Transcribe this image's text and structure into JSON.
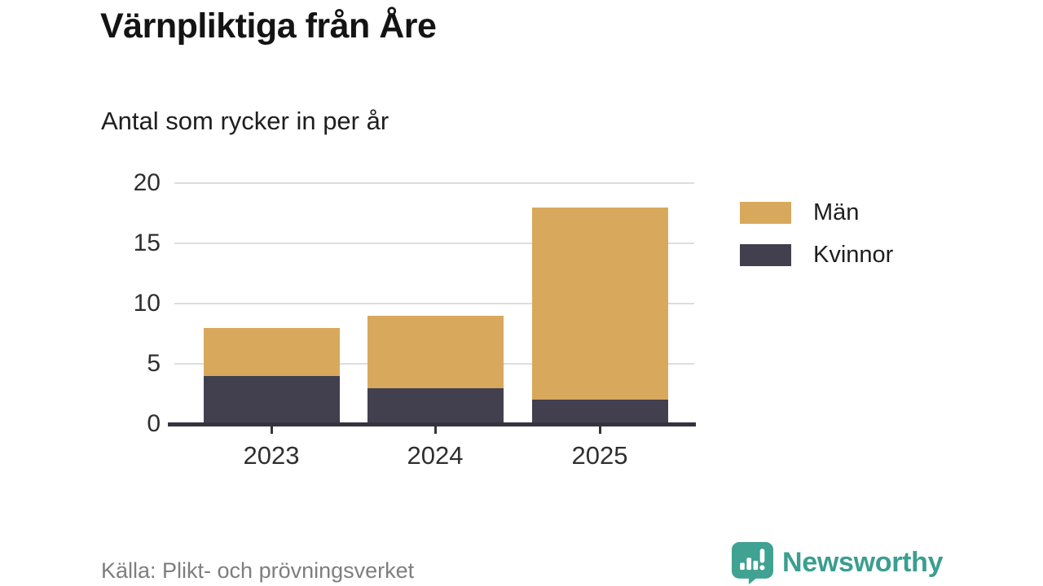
{
  "header": {
    "title": "Värnpliktiga från Åre",
    "subtitle": "Antal som rycker in per år"
  },
  "chart_data": {
    "type": "bar",
    "stacked": true,
    "categories": [
      "2023",
      "2024",
      "2025"
    ],
    "series": [
      {
        "name": "Män",
        "color": "#d8a95c",
        "values": [
          4,
          6,
          16
        ]
      },
      {
        "name": "Kvinnor",
        "color": "#42404f",
        "values": [
          4,
          3,
          2
        ]
      }
    ],
    "stacked_totals": [
      8,
      9,
      18
    ],
    "ylim": [
      0,
      20
    ],
    "yticks": [
      0,
      5,
      10,
      15,
      20
    ],
    "grid": true,
    "legend_position": "right"
  },
  "legend": {
    "items": [
      {
        "label": "Män",
        "color": "#d8a95c"
      },
      {
        "label": "Kvinnor",
        "color": "#42404f"
      }
    ]
  },
  "footer": {
    "source": "Källa: Plikt- och prövningsverket",
    "brand": "Newsworthy"
  },
  "colors": {
    "axis": "#35333e",
    "gridline": "#dddddd",
    "tick_text": "#2f2f2f",
    "brand_teal": "#3a9e90"
  }
}
